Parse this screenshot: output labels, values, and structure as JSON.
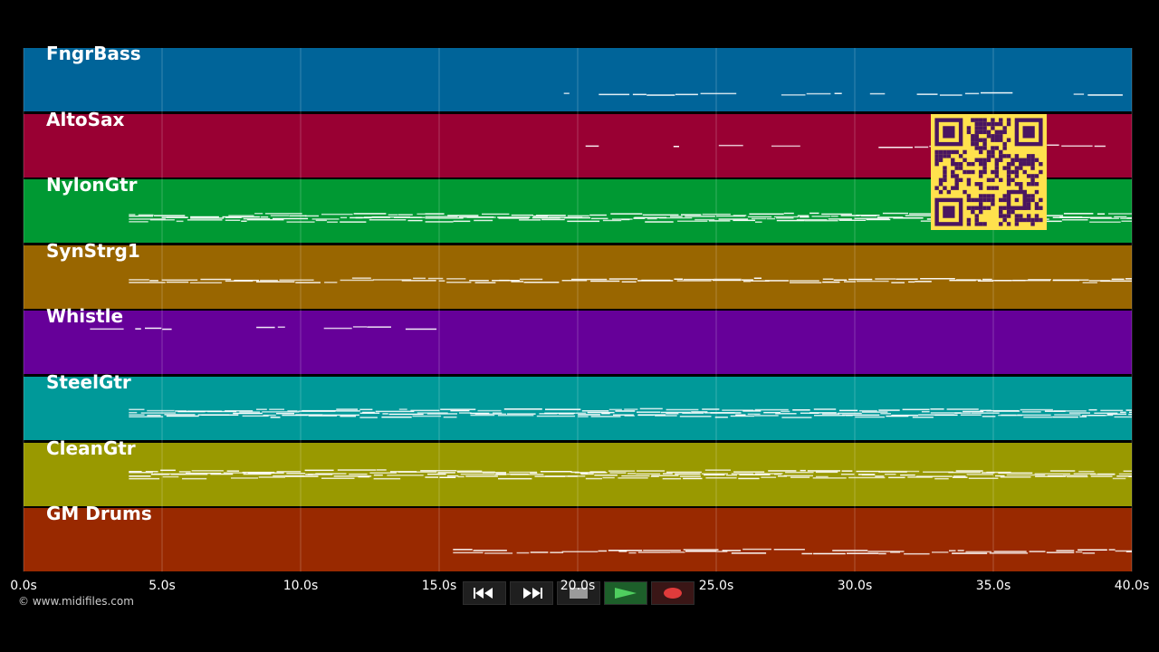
{
  "tracks": [
    {
      "name": "FngrBass",
      "color": "#006499"
    },
    {
      "name": "AltoSax",
      "color": "#990033"
    },
    {
      "name": "NylonGtr",
      "color": "#009933"
    },
    {
      "name": "SynStrg1",
      "color": "#996600"
    },
    {
      "name": "Whistle",
      "color": "#660099"
    },
    {
      "name": "SteelGtr",
      "color": "#009999"
    },
    {
      "name": "CleanGtr",
      "color": "#999900"
    },
    {
      "name": "GM Drums",
      "color": "#992900"
    }
  ],
  "timeline": {
    "start_seconds": 0,
    "end_seconds": 40,
    "tick_labels": [
      "0.0s",
      "5.0s",
      "10.0s",
      "15.0s",
      "20.0s",
      "25.0s",
      "30.0s",
      "35.0s",
      "40.0s"
    ]
  },
  "copyright": "© www.midifiles.com",
  "transport": {
    "rewind_icon": "rewind-icon",
    "fast_forward_icon": "fast-forward-icon",
    "stop_icon": "stop-icon",
    "play_icon": "play-icon",
    "record_icon": "record-icon",
    "play_color": "#4fcf5f",
    "record_color": "#e03b3b"
  },
  "qr_code": {
    "color": "#ffe14d",
    "dark": "#4a1660"
  }
}
